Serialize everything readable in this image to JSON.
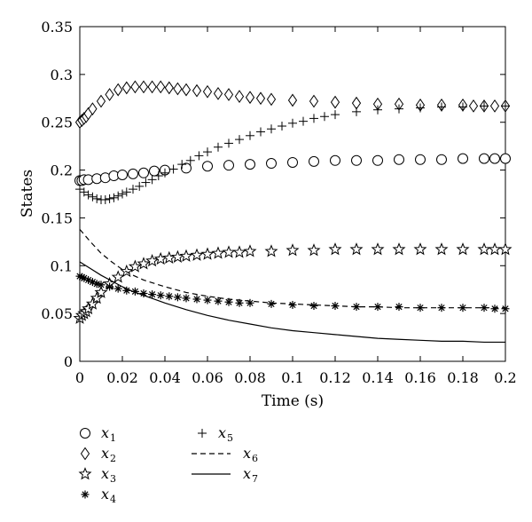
{
  "chart_data": {
    "type": "scatter",
    "title": "",
    "xlabel": "Time (s)",
    "ylabel": "States",
    "xlim": [
      0,
      0.2
    ],
    "ylim": [
      0,
      0.35
    ],
    "xticks": [
      "0",
      "0.02",
      "0.04",
      "0.06",
      "0.08",
      "0.1",
      "0.12",
      "0.14",
      "0.16",
      "0.18",
      "0.2"
    ],
    "yticks": [
      "0",
      "0.05",
      "0.1",
      "0.15",
      "0.2",
      "0.25",
      "0.3",
      "0.35"
    ],
    "grid": false,
    "legend_position": "bottom-left",
    "series": [
      {
        "name": "x1",
        "label": "x",
        "sub": "1",
        "marker": "circle",
        "line": "none",
        "x": [
          0,
          0.001,
          0.002,
          0.004,
          0.008,
          0.012,
          0.016,
          0.02,
          0.025,
          0.03,
          0.035,
          0.04,
          0.05,
          0.06,
          0.07,
          0.08,
          0.09,
          0.1,
          0.11,
          0.12,
          0.13,
          0.14,
          0.15,
          0.16,
          0.17,
          0.18,
          0.19,
          0.195,
          0.2
        ],
        "y": [
          0.189,
          0.189,
          0.19,
          0.19,
          0.191,
          0.192,
          0.194,
          0.195,
          0.196,
          0.197,
          0.199,
          0.2,
          0.202,
          0.204,
          0.205,
          0.206,
          0.207,
          0.208,
          0.209,
          0.21,
          0.21,
          0.21,
          0.211,
          0.211,
          0.211,
          0.212,
          0.212,
          0.212,
          0.212
        ]
      },
      {
        "name": "x2",
        "label": "x",
        "sub": "2",
        "marker": "diamond",
        "line": "none",
        "x": [
          0,
          0.001,
          0.002,
          0.003,
          0.004,
          0.006,
          0.01,
          0.014,
          0.018,
          0.022,
          0.026,
          0.03,
          0.034,
          0.038,
          0.042,
          0.046,
          0.05,
          0.055,
          0.06,
          0.065,
          0.07,
          0.075,
          0.08,
          0.085,
          0.09,
          0.1,
          0.11,
          0.12,
          0.13,
          0.14,
          0.15,
          0.16,
          0.17,
          0.18,
          0.185,
          0.19,
          0.195,
          0.2
        ],
        "y": [
          0.25,
          0.252,
          0.254,
          0.256,
          0.259,
          0.264,
          0.272,
          0.279,
          0.284,
          0.286,
          0.287,
          0.287,
          0.287,
          0.287,
          0.286,
          0.285,
          0.284,
          0.283,
          0.282,
          0.28,
          0.279,
          0.277,
          0.276,
          0.275,
          0.274,
          0.273,
          0.272,
          0.271,
          0.27,
          0.269,
          0.269,
          0.268,
          0.268,
          0.268,
          0.267,
          0.267,
          0.267,
          0.267
        ]
      },
      {
        "name": "x3",
        "label": "x",
        "sub": "3",
        "marker": "star",
        "line": "none",
        "x": [
          0,
          0.001,
          0.002,
          0.003,
          0.004,
          0.006,
          0.008,
          0.01,
          0.014,
          0.018,
          0.022,
          0.026,
          0.03,
          0.034,
          0.038,
          0.042,
          0.046,
          0.05,
          0.055,
          0.06,
          0.065,
          0.07,
          0.075,
          0.08,
          0.09,
          0.1,
          0.11,
          0.12,
          0.13,
          0.14,
          0.15,
          0.16,
          0.17,
          0.18,
          0.19,
          0.195,
          0.2
        ],
        "y": [
          0.045,
          0.048,
          0.05,
          0.052,
          0.055,
          0.06,
          0.066,
          0.072,
          0.081,
          0.088,
          0.094,
          0.099,
          0.102,
          0.105,
          0.107,
          0.108,
          0.109,
          0.11,
          0.111,
          0.112,
          0.113,
          0.114,
          0.114,
          0.115,
          0.115,
          0.116,
          0.116,
          0.117,
          0.117,
          0.117,
          0.117,
          0.117,
          0.117,
          0.117,
          0.117,
          0.117,
          0.117
        ]
      },
      {
        "name": "x4",
        "label": "x",
        "sub": "4",
        "marker": "asterisk",
        "line": "none",
        "x": [
          0,
          0.001,
          0.002,
          0.004,
          0.006,
          0.008,
          0.01,
          0.014,
          0.018,
          0.022,
          0.026,
          0.03,
          0.034,
          0.038,
          0.042,
          0.046,
          0.05,
          0.055,
          0.06,
          0.065,
          0.07,
          0.075,
          0.08,
          0.09,
          0.1,
          0.11,
          0.12,
          0.13,
          0.14,
          0.15,
          0.16,
          0.17,
          0.18,
          0.19,
          0.195,
          0.2
        ],
        "y": [
          0.089,
          0.088,
          0.087,
          0.085,
          0.083,
          0.081,
          0.08,
          0.078,
          0.076,
          0.074,
          0.073,
          0.071,
          0.07,
          0.069,
          0.068,
          0.067,
          0.066,
          0.065,
          0.064,
          0.063,
          0.062,
          0.061,
          0.061,
          0.06,
          0.059,
          0.058,
          0.058,
          0.057,
          0.057,
          0.057,
          0.056,
          0.056,
          0.056,
          0.056,
          0.055,
          0.055
        ]
      },
      {
        "name": "x5",
        "label": "x",
        "sub": "5",
        "marker": "plus",
        "line": "none",
        "x": [
          0,
          0.002,
          0.004,
          0.006,
          0.008,
          0.01,
          0.012,
          0.014,
          0.016,
          0.018,
          0.02,
          0.022,
          0.025,
          0.028,
          0.031,
          0.034,
          0.037,
          0.04,
          0.044,
          0.048,
          0.052,
          0.056,
          0.06,
          0.065,
          0.07,
          0.075,
          0.08,
          0.085,
          0.09,
          0.095,
          0.1,
          0.105,
          0.11,
          0.115,
          0.12,
          0.13,
          0.14,
          0.15,
          0.16,
          0.17,
          0.18,
          0.19,
          0.2
        ],
        "y": [
          0.18,
          0.177,
          0.174,
          0.172,
          0.17,
          0.169,
          0.169,
          0.17,
          0.171,
          0.173,
          0.175,
          0.177,
          0.18,
          0.183,
          0.187,
          0.19,
          0.194,
          0.197,
          0.201,
          0.206,
          0.21,
          0.215,
          0.219,
          0.224,
          0.228,
          0.232,
          0.236,
          0.24,
          0.243,
          0.246,
          0.249,
          0.251,
          0.254,
          0.256,
          0.258,
          0.261,
          0.263,
          0.264,
          0.265,
          0.266,
          0.266,
          0.267,
          0.267
        ]
      },
      {
        "name": "x6",
        "label": "x",
        "sub": "6",
        "marker": "none",
        "line": "dashed",
        "x": [
          0,
          0.005,
          0.01,
          0.015,
          0.02,
          0.025,
          0.03,
          0.04,
          0.05,
          0.06,
          0.07,
          0.08,
          0.09,
          0.1,
          0.11,
          0.12,
          0.13,
          0.14,
          0.15,
          0.16,
          0.17,
          0.18,
          0.19,
          0.2
        ],
        "y": [
          0.138,
          0.125,
          0.113,
          0.104,
          0.096,
          0.09,
          0.085,
          0.078,
          0.072,
          0.068,
          0.065,
          0.063,
          0.061,
          0.06,
          0.059,
          0.058,
          0.057,
          0.057,
          0.056,
          0.056,
          0.056,
          0.056,
          0.056,
          0.056
        ]
      },
      {
        "name": "x7",
        "label": "x",
        "sub": "7",
        "marker": "none",
        "line": "solid",
        "x": [
          0,
          0.005,
          0.01,
          0.015,
          0.02,
          0.025,
          0.03,
          0.04,
          0.05,
          0.06,
          0.07,
          0.08,
          0.09,
          0.1,
          0.11,
          0.12,
          0.13,
          0.14,
          0.15,
          0.16,
          0.17,
          0.18,
          0.19,
          0.2
        ],
        "y": [
          0.104,
          0.097,
          0.09,
          0.084,
          0.078,
          0.073,
          0.069,
          0.061,
          0.054,
          0.048,
          0.043,
          0.039,
          0.035,
          0.032,
          0.03,
          0.028,
          0.026,
          0.024,
          0.023,
          0.022,
          0.021,
          0.021,
          0.02,
          0.02
        ]
      }
    ]
  }
}
